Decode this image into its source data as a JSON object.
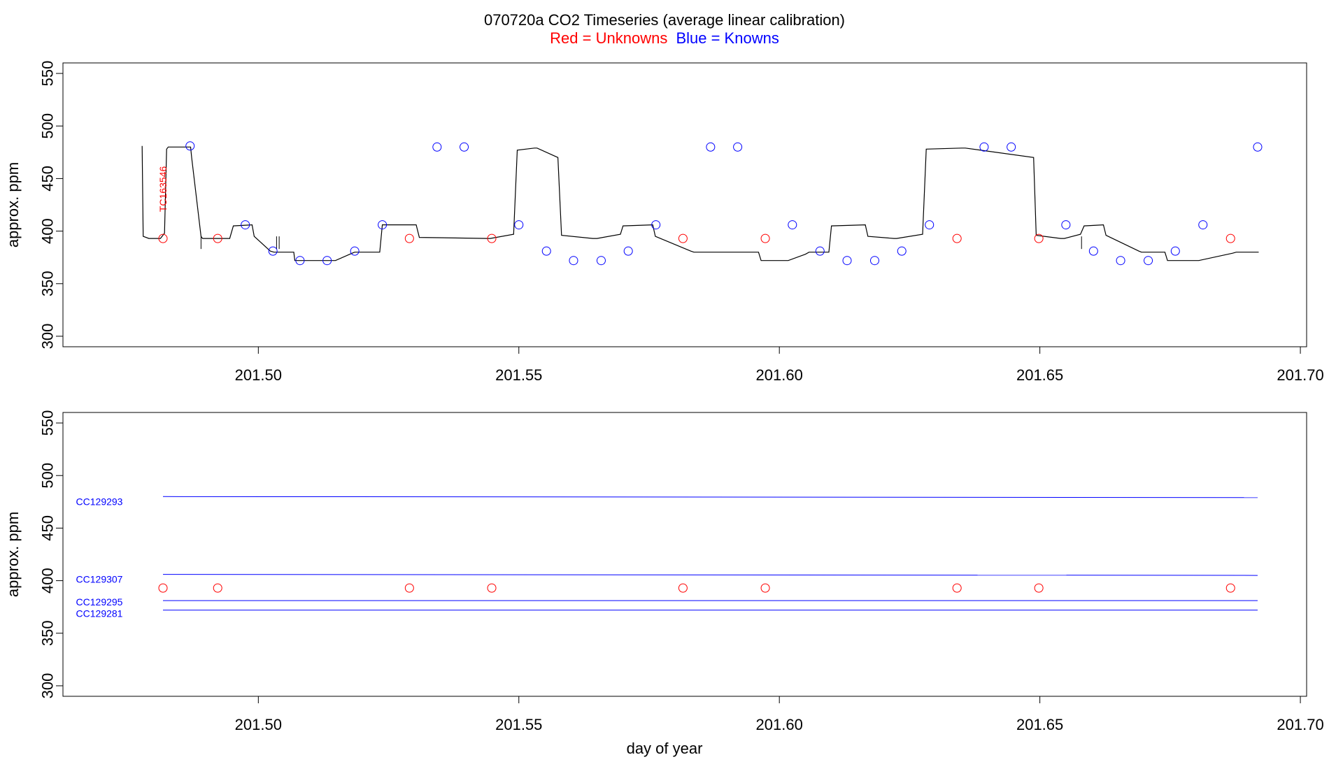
{
  "title": "070720a   CO2 Timeseries (average linear calibration)",
  "legend_red": "Red = Unknowns",
  "legend_blue": "Blue = Knowns",
  "colors": {
    "unknown": "#ff0000",
    "known": "#0000ff",
    "trace": "#000000"
  },
  "chart_data": [
    {
      "type": "line",
      "panel": "top",
      "xlabel": "",
      "ylabel": "approx. ppm",
      "xlim": [
        201.4625,
        201.7012
      ],
      "ylim": [
        290,
        560
      ],
      "x_ticks": [
        "201.50",
        "201.55",
        "201.60",
        "201.65",
        "201.70"
      ],
      "y_ticks": [
        "300",
        "350",
        "400",
        "450",
        "500",
        "550"
      ],
      "annotation": "TC163546",
      "trace": {
        "x": [
          201.4777,
          201.4779,
          201.479,
          201.4794,
          201.4812,
          201.482,
          201.4824,
          201.4827,
          201.487,
          201.4872,
          201.489,
          201.4893,
          201.4945,
          201.4952,
          201.4988,
          201.4992,
          201.5023,
          201.503,
          201.5068,
          201.507,
          201.5142,
          201.5148,
          201.518,
          201.5185,
          201.5233,
          201.5238,
          201.5303,
          201.5309,
          201.544,
          201.5445,
          201.549,
          201.5497,
          201.553,
          201.5535,
          201.5575,
          201.5582,
          201.5642,
          201.565,
          201.5695,
          201.57,
          201.5757,
          201.5762,
          201.583,
          201.5836,
          201.596,
          201.5965,
          201.601,
          201.6017,
          201.605,
          201.6057,
          201.6095,
          201.61,
          201.6165,
          201.617,
          201.622,
          201.6225,
          201.6275,
          201.6282,
          201.635,
          201.6357,
          201.6488,
          201.6493,
          201.654,
          201.6547,
          201.6578,
          201.6585,
          201.6622,
          201.6627,
          201.669,
          201.6695,
          201.674,
          201.6745,
          201.68,
          201.6805,
          201.687,
          201.6877,
          201.692
        ],
        "y": [
          481,
          395,
          393,
          393,
          393,
          398,
          478,
          480,
          480,
          470,
          395,
          393,
          393,
          405,
          406,
          395,
          381,
          380,
          380,
          372,
          372,
          372,
          379,
          380,
          380,
          406,
          406,
          394,
          393,
          393,
          397,
          477,
          479,
          479,
          470,
          396,
          393,
          393,
          397,
          405,
          406,
          395,
          381,
          380,
          380,
          372,
          372,
          372,
          378,
          380,
          380,
          405,
          406,
          395,
          393,
          393,
          397,
          478,
          479,
          479,
          470,
          396,
          393,
          393,
          397,
          405,
          406,
          396,
          381,
          380,
          380,
          372,
          372,
          372,
          379,
          380,
          380
        ]
      },
      "knowns": {
        "x": [
          201.4869,
          201.4975,
          201.5028,
          201.508,
          201.5132,
          201.5185,
          201.5238,
          201.5343,
          201.5395,
          201.55,
          201.5553,
          201.5605,
          201.5658,
          201.571,
          201.5763,
          201.5868,
          201.592,
          201.6025,
          201.6078,
          201.613,
          201.6183,
          201.6235,
          201.6288,
          201.6393,
          201.6445,
          201.655,
          201.6603,
          201.6655,
          201.6708,
          201.676,
          201.6813,
          201.6918
        ],
        "y": [
          481,
          406,
          381,
          372,
          372,
          381,
          406,
          480,
          480,
          406,
          381,
          372,
          372,
          381,
          406,
          480,
          480,
          406,
          381,
          372,
          372,
          381,
          406,
          480,
          480,
          406,
          381,
          372,
          372,
          381,
          406,
          480
        ]
      },
      "unknowns": {
        "x": [
          201.4817,
          201.4922,
          201.529,
          201.5448,
          201.5815,
          201.5973,
          201.6341,
          201.6498,
          201.6866
        ],
        "y": [
          393,
          393,
          393,
          393,
          393,
          393,
          393,
          393,
          393
        ]
      }
    },
    {
      "type": "line",
      "panel": "bottom",
      "xlabel": "day of year",
      "ylabel": "approx. ppm",
      "xlim": [
        201.4625,
        201.7012
      ],
      "ylim": [
        290,
        560
      ],
      "x_ticks": [
        "201.50",
        "201.55",
        "201.60",
        "201.65",
        "201.70"
      ],
      "y_ticks": [
        "300",
        "350",
        "400",
        "450",
        "500",
        "550"
      ],
      "series": [
        {
          "name": "CC129293",
          "x": [
            201.4817,
            201.6918
          ],
          "y": [
            480,
            479
          ]
        },
        {
          "name": "CC129307",
          "x": [
            201.4817,
            201.6918
          ],
          "y": [
            406,
            405
          ]
        },
        {
          "name": "CC129295",
          "x": [
            201.4817,
            201.6918
          ],
          "y": [
            381,
            381
          ]
        },
        {
          "name": "CC129281",
          "x": [
            201.4817,
            201.6918
          ],
          "y": [
            372,
            372
          ]
        }
      ],
      "unknowns": {
        "x": [
          201.4817,
          201.4922,
          201.529,
          201.5448,
          201.5815,
          201.5973,
          201.6341,
          201.6498,
          201.6866
        ],
        "y": [
          393,
          393,
          393,
          393,
          393,
          393,
          393,
          393,
          393
        ]
      }
    }
  ]
}
